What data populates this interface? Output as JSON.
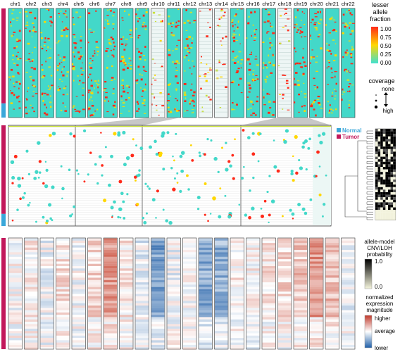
{
  "chart_data": [
    {
      "type": "heatmap",
      "panel": "allele",
      "categories": [
        "chr1",
        "chr2",
        "chr3",
        "chr4",
        "chr5",
        "chr6",
        "chr7",
        "chr8",
        "chr9",
        "chr10",
        "chr11",
        "chr12",
        "chr13",
        "chr14",
        "chr15",
        "chr16",
        "chr17",
        "chr18",
        "chr19",
        "chr20",
        "chr21",
        "chr22"
      ],
      "legend_title": [
        "lesser",
        "allele",
        "fraction"
      ],
      "color_scale": {
        "stops": [
          "#40e0d0",
          "#ffd700",
          "#ff2a1a"
        ],
        "ticks": [
          "1.00",
          "0.75",
          "0.50",
          "0.25",
          "0.00"
        ]
      },
      "coverage_legend": {
        "title": "coverage",
        "none": "none",
        "high": "high"
      }
    },
    {
      "type": "scatter",
      "panel": "zoom",
      "legend": [
        {
          "name": "Normal",
          "color": "#3aa7d9"
        },
        {
          "name": "Tumor",
          "color": "#c2185b"
        }
      ]
    },
    {
      "type": "heatmap",
      "panel": "expression",
      "categories": [
        "chr1",
        "chr2",
        "chr3",
        "chr4",
        "chr5",
        "chr6",
        "chr7",
        "chr8",
        "chr9",
        "chr10",
        "chr11",
        "chr12",
        "chr13",
        "chr14",
        "chr15",
        "chr16",
        "chr17",
        "chr18",
        "chr19",
        "chr20",
        "chr21",
        "chr22"
      ],
      "cnv_legend": {
        "title": [
          "allele-model",
          "CNV/LOH",
          "probability"
        ],
        "ticks": [
          "1.0",
          "0.0"
        ]
      },
      "expr_legend": {
        "title": [
          "normalized",
          "expression",
          "magnitude"
        ],
        "ticks": [
          "higher",
          "average",
          "lower"
        ]
      },
      "colors": {
        "high": "#c0392b",
        "mid": "#ffffff",
        "low": "#1f5fa8"
      }
    }
  ]
}
